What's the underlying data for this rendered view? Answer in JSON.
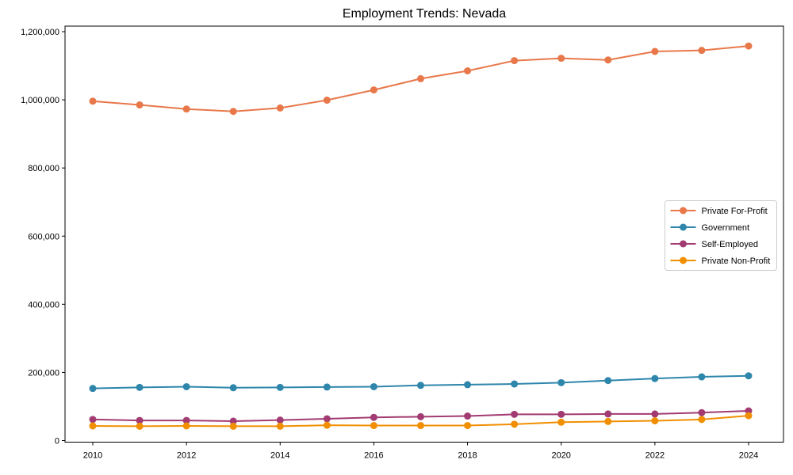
{
  "title": "Employment Trends: Nevada",
  "chart_data": {
    "type": "line",
    "title": "Employment Trends: Nevada",
    "xlabel": "",
    "ylabel": "",
    "grid": false,
    "legend_position": "center right",
    "x": [
      2010,
      2011,
      2012,
      2013,
      2014,
      2015,
      2016,
      2017,
      2018,
      2019,
      2020,
      2021,
      2022,
      2023,
      2024
    ],
    "x_tick_years": [
      2010,
      2012,
      2014,
      2016,
      2018,
      2020,
      2022,
      2024
    ],
    "x_tick_labels": [
      "2010",
      "2012",
      "2014",
      "2016",
      "2018",
      "2020",
      "2022",
      "2024"
    ],
    "y_tick_values": [
      0,
      200000,
      400000,
      600000,
      800000,
      1000000,
      1200000
    ],
    "y_tick_labels": [
      "0",
      "200,000",
      "400,000",
      "600,000",
      "800,000",
      "1,000,000",
      "1,200,000"
    ],
    "ylim": [
      0,
      1200000
    ],
    "xlim": [
      2010,
      2024
    ],
    "series": [
      {
        "name": "Private For-Profit",
        "color": "#E8784A",
        "values": [
          996000,
          985000,
          973000,
          966000,
          976000,
          999000,
          1029000,
          1062000,
          1085000,
          1115000,
          1122000,
          1117000,
          1142000,
          1145000,
          1158000
        ]
      },
      {
        "name": "Government",
        "color": "#2E86AB",
        "values": [
          153000,
          156000,
          158000,
          155000,
          156000,
          157000,
          158000,
          162000,
          164000,
          166000,
          170000,
          176000,
          182000,
          187000,
          190000
        ]
      },
      {
        "name": "Self-Employed",
        "color": "#A23B72",
        "values": [
          62000,
          59000,
          59000,
          57000,
          60000,
          64000,
          68000,
          70000,
          72000,
          77000,
          77000,
          78000,
          78000,
          82000,
          87000
        ]
      },
      {
        "name": "Private Non-Profit",
        "color": "#F18F01",
        "values": [
          43000,
          42000,
          43000,
          42000,
          42000,
          45000,
          44000,
          44000,
          44000,
          48000,
          54000,
          56000,
          58000,
          62000,
          73000
        ]
      }
    ]
  }
}
